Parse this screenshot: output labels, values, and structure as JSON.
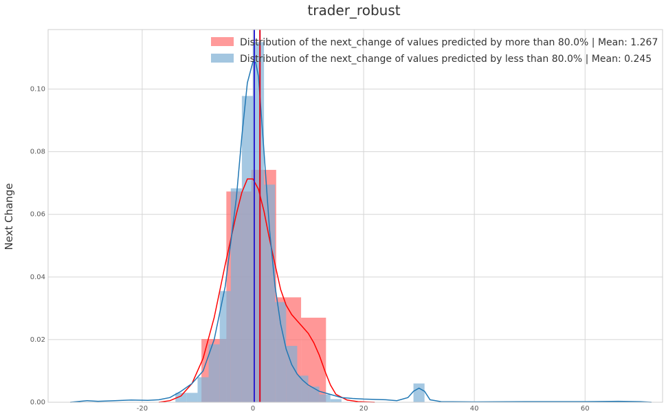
{
  "chart_data": {
    "type": "histogram",
    "title": "trader_robust",
    "xlabel": "",
    "ylabel": "Next Change",
    "xlim": [
      -37,
      74
    ],
    "ylim": [
      0,
      0.119
    ],
    "x_ticks": [
      -20,
      0,
      20,
      40,
      60
    ],
    "y_ticks": [
      0.0,
      0.02,
      0.04,
      0.06,
      0.08,
      0.1
    ],
    "y_tick_labels": [
      "0.00",
      "0.02",
      "0.04",
      "0.06",
      "0.08",
      "0.10"
    ],
    "grid": true,
    "legend_position": "top-right",
    "series": [
      {
        "name": "Distribution of the next_change of values predicted by more than 80.0% | Mean: 1.267",
        "color": "#ff6b6b",
        "kde_color": "#ff0000",
        "mean": 1.267,
        "bins": [
          {
            "x0": -9.3,
            "x1": -4.8,
            "density": 0.0202
          },
          {
            "x0": -4.8,
            "x1": -0.3,
            "density": 0.0673
          },
          {
            "x0": -0.3,
            "x1": 4.2,
            "density": 0.0742
          },
          {
            "x0": 4.2,
            "x1": 8.7,
            "density": 0.0335
          },
          {
            "x0": 8.7,
            "x1": 13.2,
            "density": 0.027
          }
        ],
        "kde": [
          [
            -17,
            0.0
          ],
          [
            -15,
            0.0005
          ],
          [
            -13,
            0.002
          ],
          [
            -11,
            0.006
          ],
          [
            -9,
            0.014
          ],
          [
            -7,
            0.027
          ],
          [
            -5,
            0.044
          ],
          [
            -3,
            0.06
          ],
          [
            -2,
            0.067
          ],
          [
            -1,
            0.0713
          ],
          [
            0,
            0.0713
          ],
          [
            1,
            0.068
          ],
          [
            2,
            0.061
          ],
          [
            3,
            0.052
          ],
          [
            4,
            0.044
          ],
          [
            5,
            0.036
          ],
          [
            6,
            0.031
          ],
          [
            7,
            0.028
          ],
          [
            8,
            0.026
          ],
          [
            9,
            0.024
          ],
          [
            10,
            0.022
          ],
          [
            11,
            0.019
          ],
          [
            12,
            0.015
          ],
          [
            13,
            0.01
          ],
          [
            14,
            0.0055
          ],
          [
            15,
            0.0025
          ],
          [
            17,
            0.0007
          ],
          [
            19,
            0.0002
          ],
          [
            22,
            0.0
          ]
        ]
      },
      {
        "name": "Distribution of the next_change of values predicted by less than 80.0% | Mean: 0.245",
        "color": "#7fb0d5",
        "kde_color": "#1f77b4",
        "mean": 0.245,
        "bins": [
          {
            "x0": -14.0,
            "x1": -12.0,
            "density": 0.003
          },
          {
            "x0": -12.0,
            "x1": -10.0,
            "density": 0.003
          },
          {
            "x0": -10.0,
            "x1": -8.0,
            "density": 0.008
          },
          {
            "x0": -8.0,
            "x1": -6.0,
            "density": 0.0185
          },
          {
            "x0": -6.0,
            "x1": -4.0,
            "density": 0.0355
          },
          {
            "x0": -4.0,
            "x1": -2.0,
            "density": 0.0683
          },
          {
            "x0": -2.0,
            "x1": 0.0,
            "density": 0.0978
          },
          {
            "x0": 0.0,
            "x1": 2.0,
            "density": 0.115
          },
          {
            "x0": 2.0,
            "x1": 4.0,
            "density": 0.0695
          },
          {
            "x0": 4.0,
            "x1": 6.0,
            "density": 0.032
          },
          {
            "x0": 6.0,
            "x1": 8.0,
            "density": 0.018
          },
          {
            "x0": 8.0,
            "x1": 10.0,
            "density": 0.0085
          },
          {
            "x0": 10.0,
            "x1": 12.0,
            "density": 0.005
          },
          {
            "x0": 12.0,
            "x1": 14.0,
            "density": 0.0025
          },
          {
            "x0": 14.0,
            "x1": 16.0,
            "density": 0.001
          },
          {
            "x0": 29.0,
            "x1": 31.0,
            "density": 0.006
          }
        ],
        "kde": [
          [
            -33,
            0.0
          ],
          [
            -30,
            0.0005
          ],
          [
            -28,
            0.0003
          ],
          [
            -25,
            0.0005
          ],
          [
            -22,
            0.0007
          ],
          [
            -19,
            0.0006
          ],
          [
            -17,
            0.0008
          ],
          [
            -15,
            0.0015
          ],
          [
            -13,
            0.0035
          ],
          [
            -11,
            0.006
          ],
          [
            -9,
            0.01
          ],
          [
            -7,
            0.02
          ],
          [
            -5,
            0.037
          ],
          [
            -3,
            0.065
          ],
          [
            -2,
            0.085
          ],
          [
            -1,
            0.102
          ],
          [
            0,
            0.1087
          ],
          [
            0.5,
            0.1085
          ],
          [
            1,
            0.104
          ],
          [
            2,
            0.08
          ],
          [
            3,
            0.055
          ],
          [
            4,
            0.037
          ],
          [
            5,
            0.025
          ],
          [
            6,
            0.017
          ],
          [
            7,
            0.012
          ],
          [
            8,
            0.009
          ],
          [
            9,
            0.007
          ],
          [
            10,
            0.0055
          ],
          [
            12,
            0.0035
          ],
          [
            14,
            0.0025
          ],
          [
            16,
            0.0015
          ],
          [
            18,
            0.0012
          ],
          [
            20,
            0.001
          ],
          [
            22,
            0.0009
          ],
          [
            24,
            0.0008
          ],
          [
            26,
            0.0005
          ],
          [
            28,
            0.0015
          ],
          [
            29,
            0.0035
          ],
          [
            30,
            0.0045
          ],
          [
            31,
            0.0035
          ],
          [
            32,
            0.0008
          ],
          [
            34,
            0.0002
          ],
          [
            40,
            0.0001
          ],
          [
            50,
            0.0002
          ],
          [
            60,
            0.0002
          ],
          [
            66,
            0.0003
          ],
          [
            70,
            0.0002
          ],
          [
            72,
            0.0
          ]
        ]
      }
    ]
  }
}
